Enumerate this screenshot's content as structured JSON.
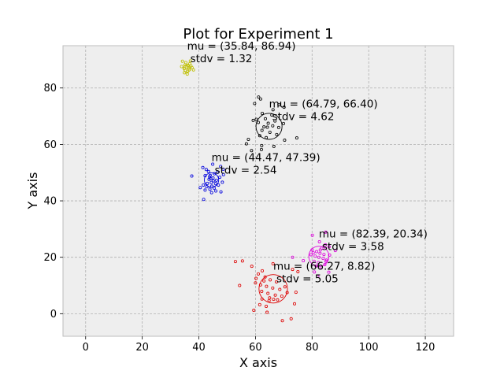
{
  "chart_data": {
    "type": "scatter",
    "title": "Plot for Experiment 1",
    "xlabel": "X axis",
    "ylabel": "Y axis",
    "xlim": [
      -8,
      130
    ],
    "ylim": [
      -8,
      95
    ],
    "xticks": [
      0,
      20,
      40,
      60,
      80,
      100,
      120
    ],
    "yticks": [
      0,
      20,
      40,
      60,
      80
    ],
    "grid": true,
    "background": "#eeeeee",
    "clusters": [
      {
        "color": "#bfbf00",
        "mean": [
          35.84,
          86.94
        ],
        "stdv": 1.32,
        "annotation_mu": "mu = (35.84, 86.94)",
        "annotation_sd": "stdv = 1.32",
        "points": [
          [
            35.8,
            87.4
          ],
          [
            36.6,
            86.5
          ],
          [
            35.1,
            88.2
          ],
          [
            34.8,
            86.9
          ],
          [
            37.2,
            87.8
          ],
          [
            36.0,
            85.9
          ],
          [
            35.4,
            89.0
          ],
          [
            34.2,
            89.5
          ],
          [
            37.6,
            87.2
          ],
          [
            36.8,
            88.6
          ],
          [
            35.9,
            84.9
          ],
          [
            33.9,
            87.6
          ],
          [
            38.1,
            86.4
          ],
          [
            36.4,
            87.0
          ],
          [
            34.9,
            85.4
          ],
          [
            37.0,
            89.6
          ],
          [
            35.2,
            86.2
          ],
          [
            36.2,
            88.0
          ]
        ]
      },
      {
        "color": "#000000",
        "mean": [
          64.79,
          66.4
        ],
        "stdv": 4.62,
        "annotation_mu": "mu = (64.79, 66.40)",
        "annotation_sd": "stdv = 4.62",
        "points": [
          [
            61.1,
            76.8
          ],
          [
            61.8,
            76.1
          ],
          [
            59.7,
            74.5
          ],
          [
            68.3,
            74.1
          ],
          [
            66.2,
            72.3
          ],
          [
            70.1,
            73.2
          ],
          [
            62.4,
            71.0
          ],
          [
            63.5,
            69.1
          ],
          [
            65.8,
            70.4
          ],
          [
            59.2,
            68.5
          ],
          [
            61.0,
            67.8
          ],
          [
            63.0,
            66.2
          ],
          [
            64.5,
            67.5
          ],
          [
            66.9,
            68.3
          ],
          [
            68.2,
            66.0
          ],
          [
            69.9,
            67.4
          ],
          [
            62.3,
            65.0
          ],
          [
            65.1,
            64.3
          ],
          [
            67.5,
            63.5
          ],
          [
            63.8,
            62.4
          ],
          [
            61.5,
            63.1
          ],
          [
            57.5,
            61.8
          ],
          [
            56.8,
            60.2
          ],
          [
            62.2,
            59.6
          ],
          [
            66.5,
            59.3
          ],
          [
            70.3,
            61.5
          ],
          [
            74.6,
            62.3
          ],
          [
            62.1,
            58.2
          ],
          [
            58.6,
            57.8
          ],
          [
            64.2,
            66.1
          ],
          [
            66.1,
            66.6
          ],
          [
            60.3,
            68.9
          ]
        ]
      },
      {
        "color": "#0000dd",
        "mean": [
          44.47,
          47.39
        ],
        "stdv": 2.54,
        "annotation_mu": "mu = (44.47, 47.39)",
        "annotation_sd": "stdv = 2.54",
        "points": [
          [
            41.4,
            51.8
          ],
          [
            42.6,
            51.1
          ],
          [
            44.9,
            53.0
          ],
          [
            47.7,
            52.2
          ],
          [
            48.6,
            51.2
          ],
          [
            43.4,
            50.4
          ],
          [
            45.5,
            49.6
          ],
          [
            46.6,
            50.1
          ],
          [
            44.0,
            49.0
          ],
          [
            42.2,
            48.9
          ],
          [
            45.0,
            48.1
          ],
          [
            46.2,
            47.3
          ],
          [
            43.6,
            47.6
          ],
          [
            47.4,
            48.4
          ],
          [
            44.4,
            46.5
          ],
          [
            45.9,
            46.1
          ],
          [
            43.0,
            46.2
          ],
          [
            41.6,
            45.6
          ],
          [
            42.8,
            45.0
          ],
          [
            44.6,
            45.2
          ],
          [
            46.9,
            45.6
          ],
          [
            48.3,
            46.6
          ],
          [
            45.4,
            44.5
          ],
          [
            43.9,
            44.1
          ],
          [
            42.2,
            43.8
          ],
          [
            46.0,
            43.5
          ],
          [
            47.8,
            43.2
          ],
          [
            44.5,
            42.9
          ],
          [
            37.5,
            48.8
          ],
          [
            41.7,
            40.5
          ],
          [
            40.5,
            44.7
          ],
          [
            48.7,
            49.3
          ],
          [
            44.2,
            47.9
          ],
          [
            45.1,
            47.1
          ],
          [
            43.8,
            48.5
          ]
        ]
      },
      {
        "color": "#dd00dd",
        "mean": [
          82.39,
          20.34
        ],
        "stdv": 3.58,
        "annotation_mu": "mu = (82.39, 20.34)",
        "annotation_sd": "stdv = 3.58",
        "points": [
          [
            84.8,
            28.9
          ],
          [
            80.1,
            27.8
          ],
          [
            82.6,
            25.5
          ],
          [
            84.7,
            24.4
          ],
          [
            86.0,
            23.7
          ],
          [
            83.4,
            23.2
          ],
          [
            80.0,
            22.6
          ],
          [
            81.6,
            22.0
          ],
          [
            82.8,
            21.4
          ],
          [
            84.2,
            21.0
          ],
          [
            79.6,
            20.9
          ],
          [
            81.1,
            20.4
          ],
          [
            82.4,
            20.0
          ],
          [
            83.9,
            19.6
          ],
          [
            85.1,
            19.0
          ],
          [
            80.7,
            18.6
          ],
          [
            82.2,
            18.1
          ],
          [
            84.5,
            17.4
          ],
          [
            81.4,
            16.9
          ],
          [
            83.2,
            16.4
          ],
          [
            76.9,
            18.8
          ],
          [
            73.1,
            20.0
          ],
          [
            80.8,
            14.8
          ],
          [
            82.0,
            13.2
          ],
          [
            85.9,
            14.7
          ],
          [
            84.9,
            18.6
          ],
          [
            88.2,
            22.4
          ],
          [
            80.4,
            21.6
          ],
          [
            82.9,
            22.6
          ],
          [
            86.2,
            20.8
          ]
        ]
      },
      {
        "color": "#dd0000",
        "mean": [
          66.27,
          8.82
        ],
        "stdv": 5.05,
        "annotation_mu": "mu = (66.27, 8.82)",
        "annotation_sd": "stdv = 5.05",
        "points": [
          [
            52.9,
            18.5
          ],
          [
            54.4,
            10.0
          ],
          [
            55.4,
            18.7
          ],
          [
            58.7,
            16.8
          ],
          [
            62.4,
            15.2
          ],
          [
            61.0,
            14.1
          ],
          [
            66.2,
            17.7
          ],
          [
            63.4,
            13.0
          ],
          [
            65.2,
            12.0
          ],
          [
            67.4,
            11.3
          ],
          [
            60.0,
            10.9
          ],
          [
            61.8,
            10.2
          ],
          [
            63.9,
            9.7
          ],
          [
            66.1,
            9.1
          ],
          [
            68.6,
            8.6
          ],
          [
            70.4,
            9.5
          ],
          [
            62.2,
            7.9
          ],
          [
            64.4,
            7.2
          ],
          [
            67.0,
            6.6
          ],
          [
            69.3,
            6.2
          ],
          [
            71.2,
            7.5
          ],
          [
            65.0,
            5.6
          ],
          [
            67.8,
            4.9
          ],
          [
            62.3,
            5.2
          ],
          [
            64.8,
            4.6
          ],
          [
            61.5,
            3.2
          ],
          [
            63.8,
            2.6
          ],
          [
            59.4,
            1.2
          ],
          [
            64.1,
            0.5
          ],
          [
            69.5,
            -2.5
          ],
          [
            72.6,
            -1.8
          ],
          [
            73.8,
            3.5
          ],
          [
            74.3,
            7.6
          ],
          [
            75.0,
            14.9
          ],
          [
            73.1,
            15.7
          ],
          [
            66.4,
            5.1
          ],
          [
            60.2,
            12.5
          ],
          [
            63.0,
            11.6
          ]
        ]
      }
    ]
  }
}
